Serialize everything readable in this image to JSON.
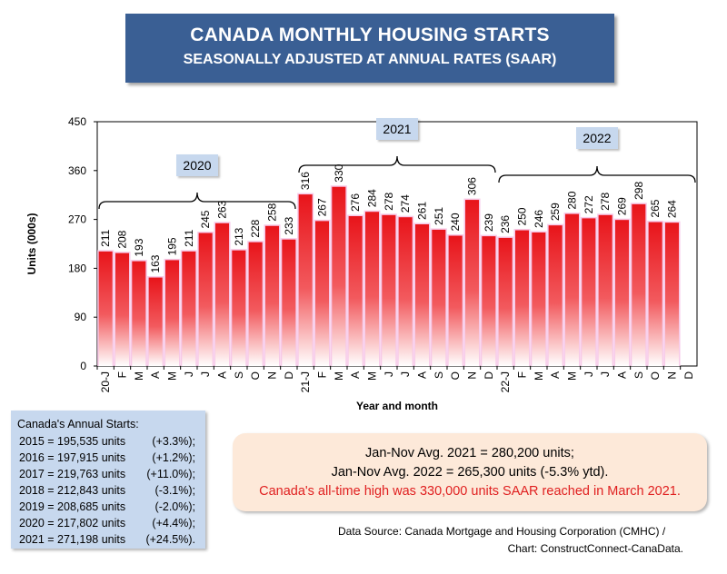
{
  "title": "CANADA MONTHLY HOUSING STARTS",
  "subtitle": "SEASONALLY ADJUSTED AT ANNUAL RATES (SAAR)",
  "chart_data": {
    "type": "bar",
    "xlabel": "Year and month",
    "ylabel": "Units (000s)",
    "ylim": [
      0,
      450
    ],
    "yticks": [
      0,
      90,
      180,
      270,
      360,
      450
    ],
    "categories": [
      "20-J",
      "F",
      "M",
      "A",
      "M",
      "J",
      "J",
      "A",
      "S",
      "O",
      "N",
      "D",
      "21-J",
      "F",
      "M",
      "A",
      "M",
      "J",
      "J",
      "A",
      "S",
      "O",
      "N",
      "D",
      "22-J",
      "F",
      "M",
      "A",
      "M",
      "J",
      "J",
      "A",
      "S",
      "O",
      "N",
      "D"
    ],
    "values": [
      211,
      208,
      193,
      163,
      195,
      211,
      245,
      263,
      213,
      228,
      258,
      233,
      316,
      267,
      330,
      276,
      284,
      278,
      274,
      261,
      251,
      240,
      306,
      239,
      236,
      250,
      246,
      259,
      280,
      272,
      278,
      269,
      298,
      265,
      264,
      null
    ],
    "bar_color": "#e8141a",
    "year_groups": [
      {
        "label": "2020",
        "start": 0,
        "end": 11
      },
      {
        "label": "2021",
        "start": 12,
        "end": 23
      },
      {
        "label": "2022",
        "start": 24,
        "end": 35
      }
    ]
  },
  "annual_box": {
    "heading": "Canada's Annual Starts:",
    "rows": [
      {
        "text": "2015 = 195,535 units",
        "pct": "(+3.3%);"
      },
      {
        "text": "2016 = 197,915 units",
        "pct": "(+1.2%);"
      },
      {
        "text": "2017 = 219,763 units",
        "pct": "(+11.0%);"
      },
      {
        "text": "2018 = 212,843 units",
        "pct": "(-3.1%);"
      },
      {
        "text": "2019 = 208,685 units",
        "pct": "(-2.0%);"
      },
      {
        "text": "2020 = 217,802 units",
        "pct": "(+4.4%);"
      },
      {
        "text": "2021 = 271,198 units",
        "pct": "(+24.5%)."
      }
    ]
  },
  "avg_box": {
    "line1": "Jan-Nov Avg. 2021 = 280,200 units;",
    "line2": "Jan-Nov Avg. 2022 = 265,300 units (-5.3% ytd).",
    "line3": "Canada's all-time high was 330,000 units SAAR reached in March 2021."
  },
  "source": {
    "line1": "Data Source:  Canada Mortgage and Housing Corporation (CMHC) /",
    "line2": "Chart: ConstructConnect-CanaData."
  }
}
